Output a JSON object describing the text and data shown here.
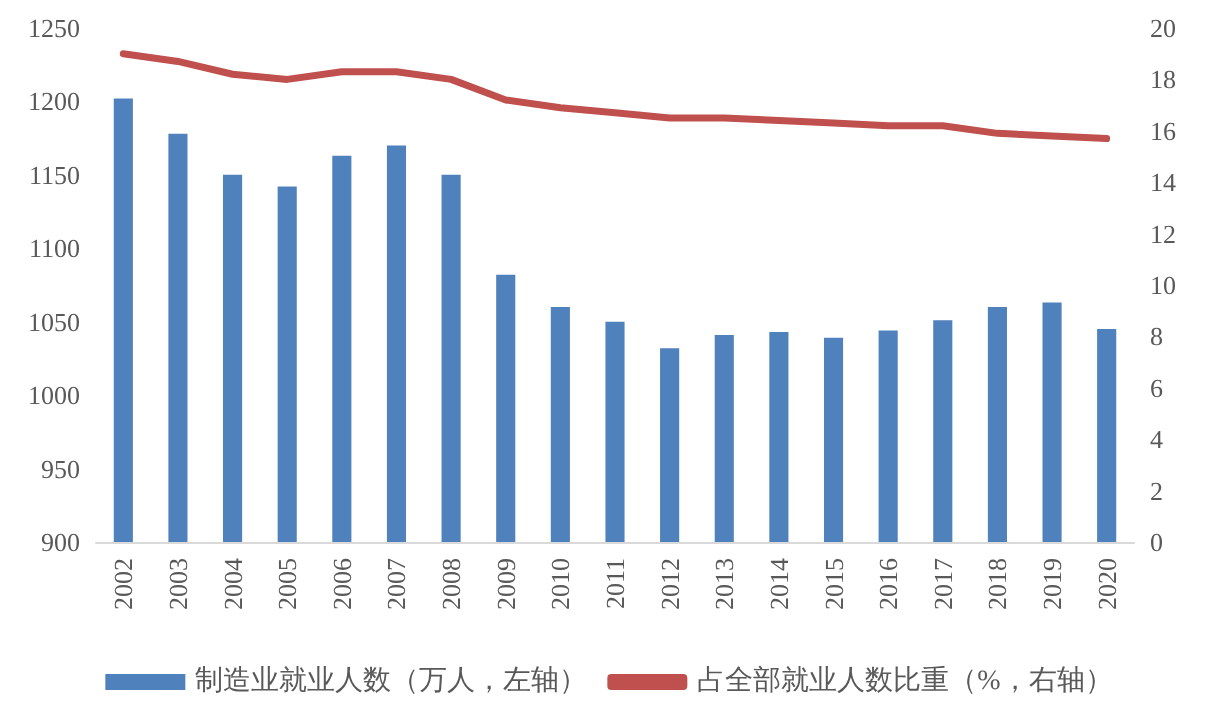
{
  "chart_data": {
    "type": "bar",
    "categories": [
      "2002",
      "2003",
      "2004",
      "2005",
      "2006",
      "2007",
      "2008",
      "2009",
      "2010",
      "2011",
      "2012",
      "2013",
      "2014",
      "2015",
      "2016",
      "2017",
      "2018",
      "2019",
      "2020"
    ],
    "series": [
      {
        "name": "制造业就业人数（万人，左轴）",
        "color": "#4f81bd",
        "values": [
          1202,
          1178,
          1150,
          1142,
          1163,
          1170,
          1150,
          1082,
          1060,
          1050,
          1032,
          1041,
          1043,
          1039,
          1044,
          1051,
          1060,
          1063,
          1045
        ]
      },
      {
        "name": "占全部就业人数比重（%，右轴）",
        "type": "line",
        "axis": "y2",
        "color": "#c0504d",
        "values": [
          19.0,
          18.7,
          18.2,
          18.0,
          18.3,
          18.3,
          18.0,
          17.2,
          16.9,
          16.7,
          16.5,
          16.5,
          16.4,
          16.3,
          16.2,
          16.2,
          15.9,
          15.8,
          15.7
        ]
      }
    ],
    "ylim": [
      900,
      1250
    ],
    "yticks": [
      900,
      950,
      1000,
      1050,
      1100,
      1150,
      1200,
      1250
    ],
    "y2lim": [
      0,
      20
    ],
    "y2ticks": [
      0,
      2,
      4,
      6,
      8,
      10,
      12,
      14,
      16,
      18,
      20
    ],
    "grid": false,
    "legend": "bottom",
    "marker": "none"
  }
}
